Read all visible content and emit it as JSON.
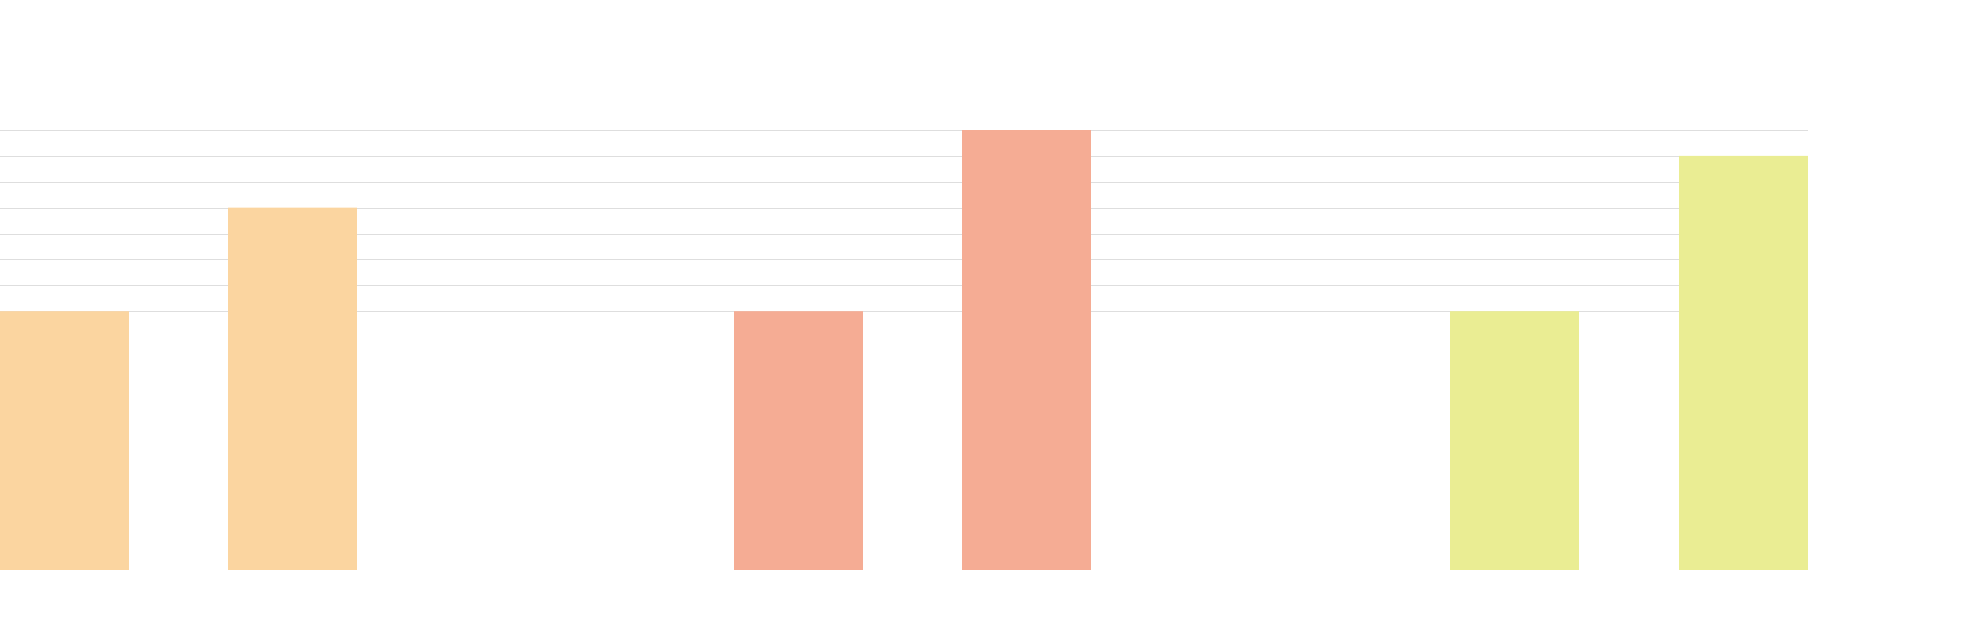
{
  "chart_data": {
    "type": "bar",
    "title": "",
    "xlabel": "",
    "ylabel": "",
    "grid": true,
    "legend": "none",
    "ylim": [
      0,
      17
    ],
    "gridlines": [
      10,
      11,
      12,
      13,
      14,
      15,
      16,
      17
    ],
    "groups": [
      {
        "color": "#fbd5a0",
        "values": [
          10,
          14
        ]
      },
      {
        "color": "#f5ac94",
        "values": [
          10,
          17
        ]
      },
      {
        "color": "#eaed93",
        "values": [
          10,
          16
        ]
      }
    ]
  }
}
